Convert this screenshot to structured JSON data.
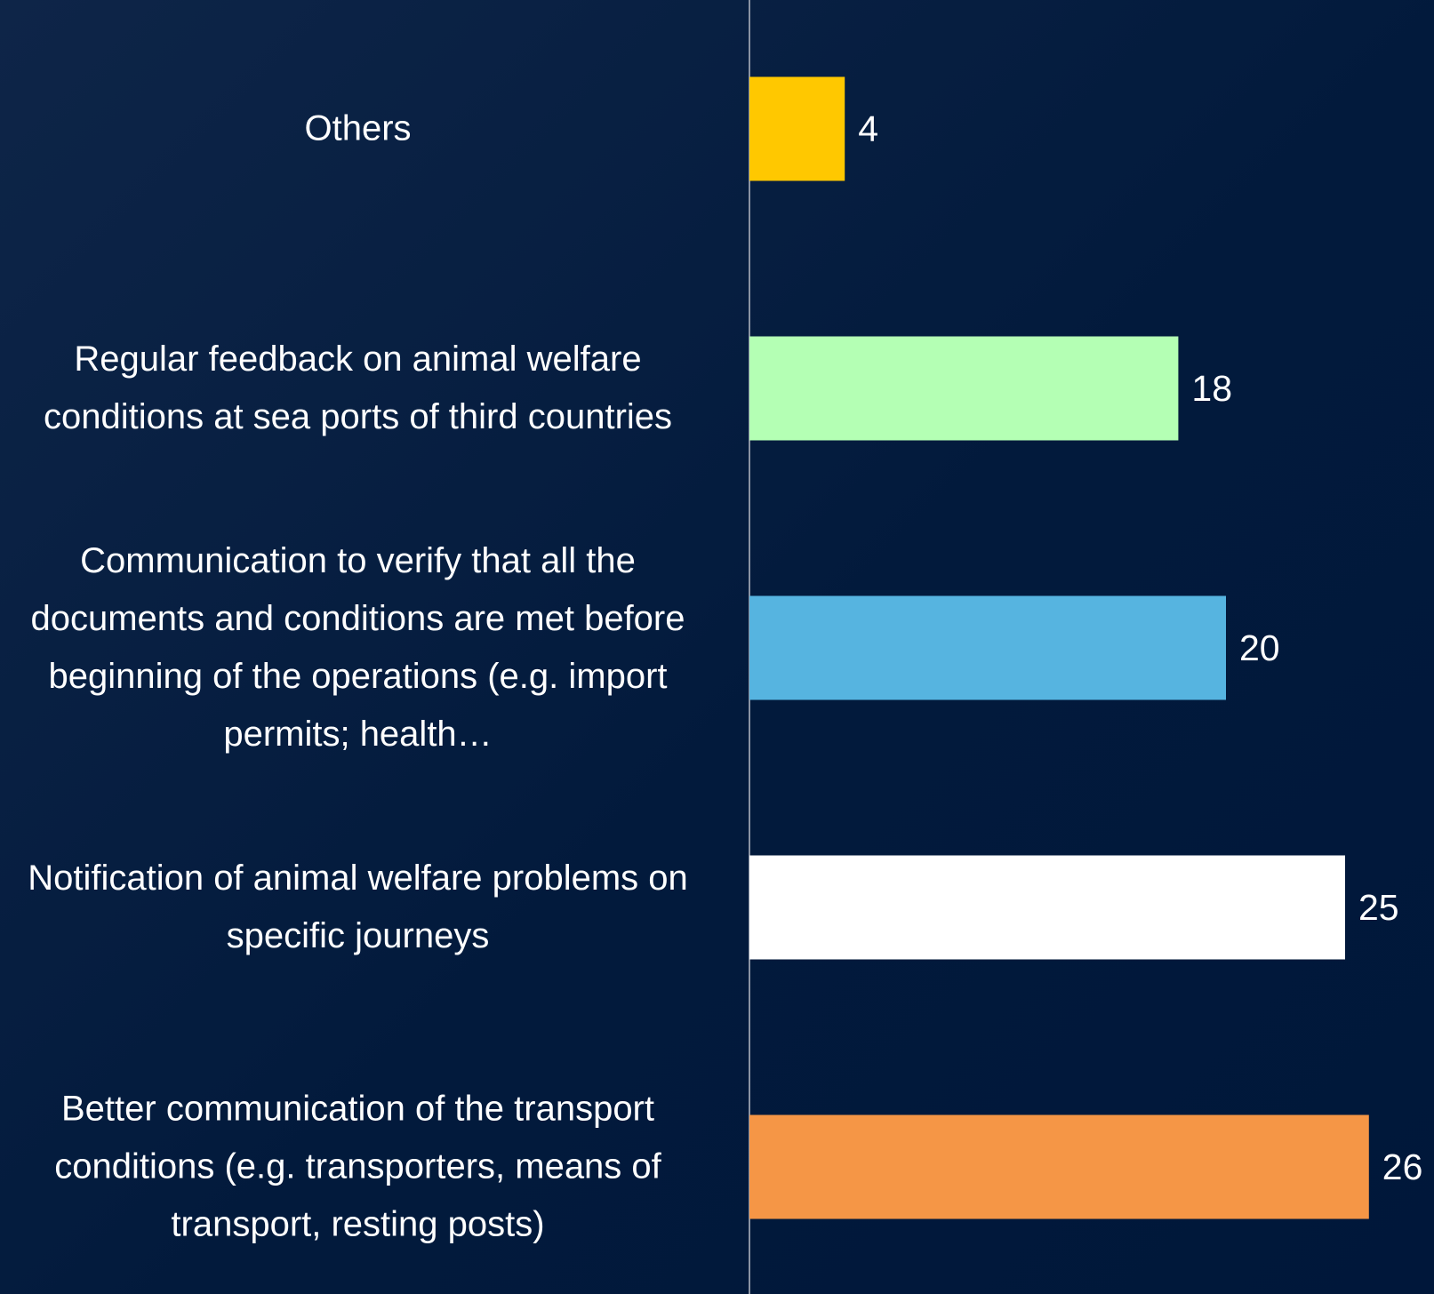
{
  "chart_data": {
    "type": "bar",
    "orientation": "horizontal",
    "categories": [
      "Others",
      "Regular feedback on animal welfare conditions at sea ports of third countries",
      "Communication to verify that all the documents and conditions are met before beginning of the operations (e.g. import permits; health…",
      "Notification of animal welfare problems on specific journeys",
      "Better communication of the transport conditions (e.g. transporters, means of transport, resting posts)"
    ],
    "values": [
      4,
      18,
      20,
      25,
      26
    ],
    "colors": [
      "#ffc800",
      "#b4ffb4",
      "#56b4e0",
      "#ffffff",
      "#f59646"
    ]
  }
}
